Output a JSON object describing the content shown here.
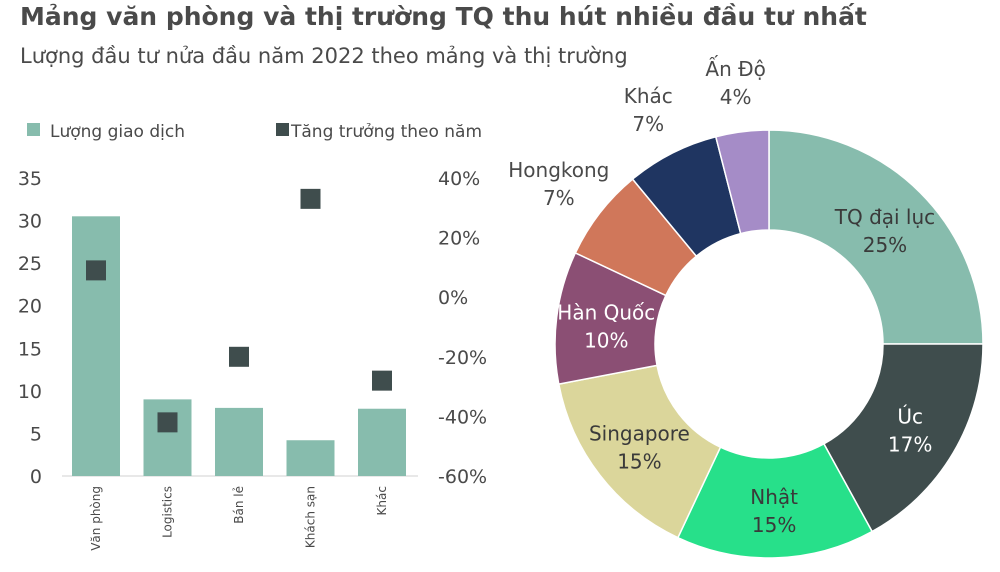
{
  "title": "Mảng văn phòng và thị trường TQ thu hút nhiều đầu tư nhất",
  "subtitle": "Lượng đầu tư nửa đầu năm 2022 theo mảng và thị trường",
  "colors": {
    "bar": "#87bcad",
    "marker": "#3f4d4d",
    "text": "#4a4a4a"
  },
  "chart_data": [
    {
      "type": "bar",
      "categories": [
        "Văn phòng",
        "Logistics",
        "Bán lẻ",
        "Khách sạn",
        "Khác"
      ],
      "series": [
        {
          "name": "Lượng giao dịch",
          "axis": "left",
          "values": [
            30.5,
            9,
            8,
            4.2,
            7.9
          ]
        },
        {
          "name": "Tăng trưởng theo năm",
          "axis": "right",
          "values": [
            9,
            -42,
            -20,
            33,
            -28
          ]
        }
      ],
      "y_ticks": [
        "35",
        "30",
        "25",
        "20",
        "15",
        "10",
        "5",
        "0"
      ],
      "ylim": [
        0,
        35
      ],
      "y2_ticks": [
        "40%",
        "20%",
        "0%",
        "-20%",
        "-40%",
        "-60%"
      ],
      "y2lim": [
        -60,
        40
      ],
      "legend": "top"
    },
    {
      "type": "pie",
      "labels": [
        "TQ đại lục",
        "Úc",
        "Nhật",
        "Singapore",
        "Hàn Quốc",
        "Hongkong",
        "Khác",
        "Ấn Độ"
      ],
      "values": [
        25,
        17,
        15,
        15,
        10,
        7,
        7,
        4
      ],
      "value_labels": [
        "25%",
        "17%",
        "15%",
        "15%",
        "10%",
        "7%",
        "7%",
        "4%"
      ],
      "colors": [
        "#87bcad",
        "#3f4d4d",
        "#27e08a",
        "#dbd69b",
        "#8b4f74",
        "#d0775a",
        "#1f3561",
        "#a58cc7"
      ],
      "donut": true
    }
  ]
}
